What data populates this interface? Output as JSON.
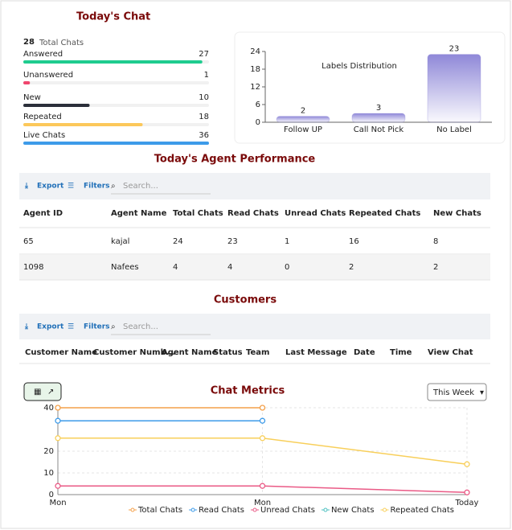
{
  "today_chat": {
    "title": "Today's Chat",
    "total": 28,
    "total_label": "Total Chats",
    "stats": [
      {
        "label": "Answered",
        "value": 27,
        "color": "#1fcc8f"
      },
      {
        "label": "Unanswered",
        "value": 1,
        "color": "#f0466e"
      },
      {
        "label": "New",
        "value": 10,
        "color": "#2b2f3a"
      },
      {
        "label": "Repeated",
        "value": 18,
        "color": "#fcc85a"
      },
      {
        "label": "Live Chats",
        "value": 36,
        "color": "#3d9be9"
      }
    ]
  },
  "agent_performance": {
    "title": "Today's Agent Performance",
    "toolbar": {
      "export": "Export",
      "filters": "Filters",
      "search": "Search..."
    },
    "columns": [
      "Agent ID",
      "Agent Name",
      "Total Chats",
      "Read Chats",
      "Unread Chats",
      "Repeated Chats",
      "New Chats"
    ],
    "rows": [
      [
        "65",
        "kajal",
        "24",
        "23",
        "1",
        "16",
        "8"
      ],
      [
        "1098",
        "Nafees",
        "4",
        "4",
        "0",
        "2",
        "2"
      ]
    ]
  },
  "customers": {
    "title": "Customers",
    "toolbar": {
      "export": "Export",
      "filters": "Filters",
      "search": "Search..."
    },
    "columns": [
      "Customer Name",
      "Customer Numb...",
      "Agent Name",
      "Status",
      "Team",
      "Last Message",
      "Date",
      "Time",
      "View Chat"
    ]
  },
  "metrics_range": "This Week",
  "chart_data": [
    {
      "type": "bar",
      "title": "Labels Distribution",
      "categories": [
        "Follow UP",
        "Call Not Pick",
        "No Label"
      ],
      "values": [
        2,
        3,
        23
      ],
      "color": "#8f88d8",
      "ylim": [
        0,
        24
      ],
      "yticks": [
        0,
        6,
        12,
        18,
        24
      ]
    },
    {
      "type": "line",
      "title": "Chat Metrics",
      "categories": [
        "Mon",
        "Mon",
        "Today"
      ],
      "ylim": [
        0,
        40
      ],
      "yticks": [
        0,
        10,
        20,
        40
      ],
      "grid": true,
      "series": [
        {
          "name": "Total Chats",
          "color": "#f4a04a",
          "values": [
            40,
            40,
            null
          ]
        },
        {
          "name": "Read Chats",
          "color": "#3d9be9",
          "values": [
            34,
            34,
            null
          ]
        },
        {
          "name": "Unread Chats",
          "color": "#ea5a86",
          "values": [
            4,
            4,
            1
          ]
        },
        {
          "name": "New Chats",
          "color": "#4bc0c0",
          "values": [
            null,
            null,
            null
          ]
        },
        {
          "name": "Repeated Chats",
          "color": "#f8cf5a",
          "values": [
            26,
            26,
            14
          ]
        }
      ]
    }
  ]
}
